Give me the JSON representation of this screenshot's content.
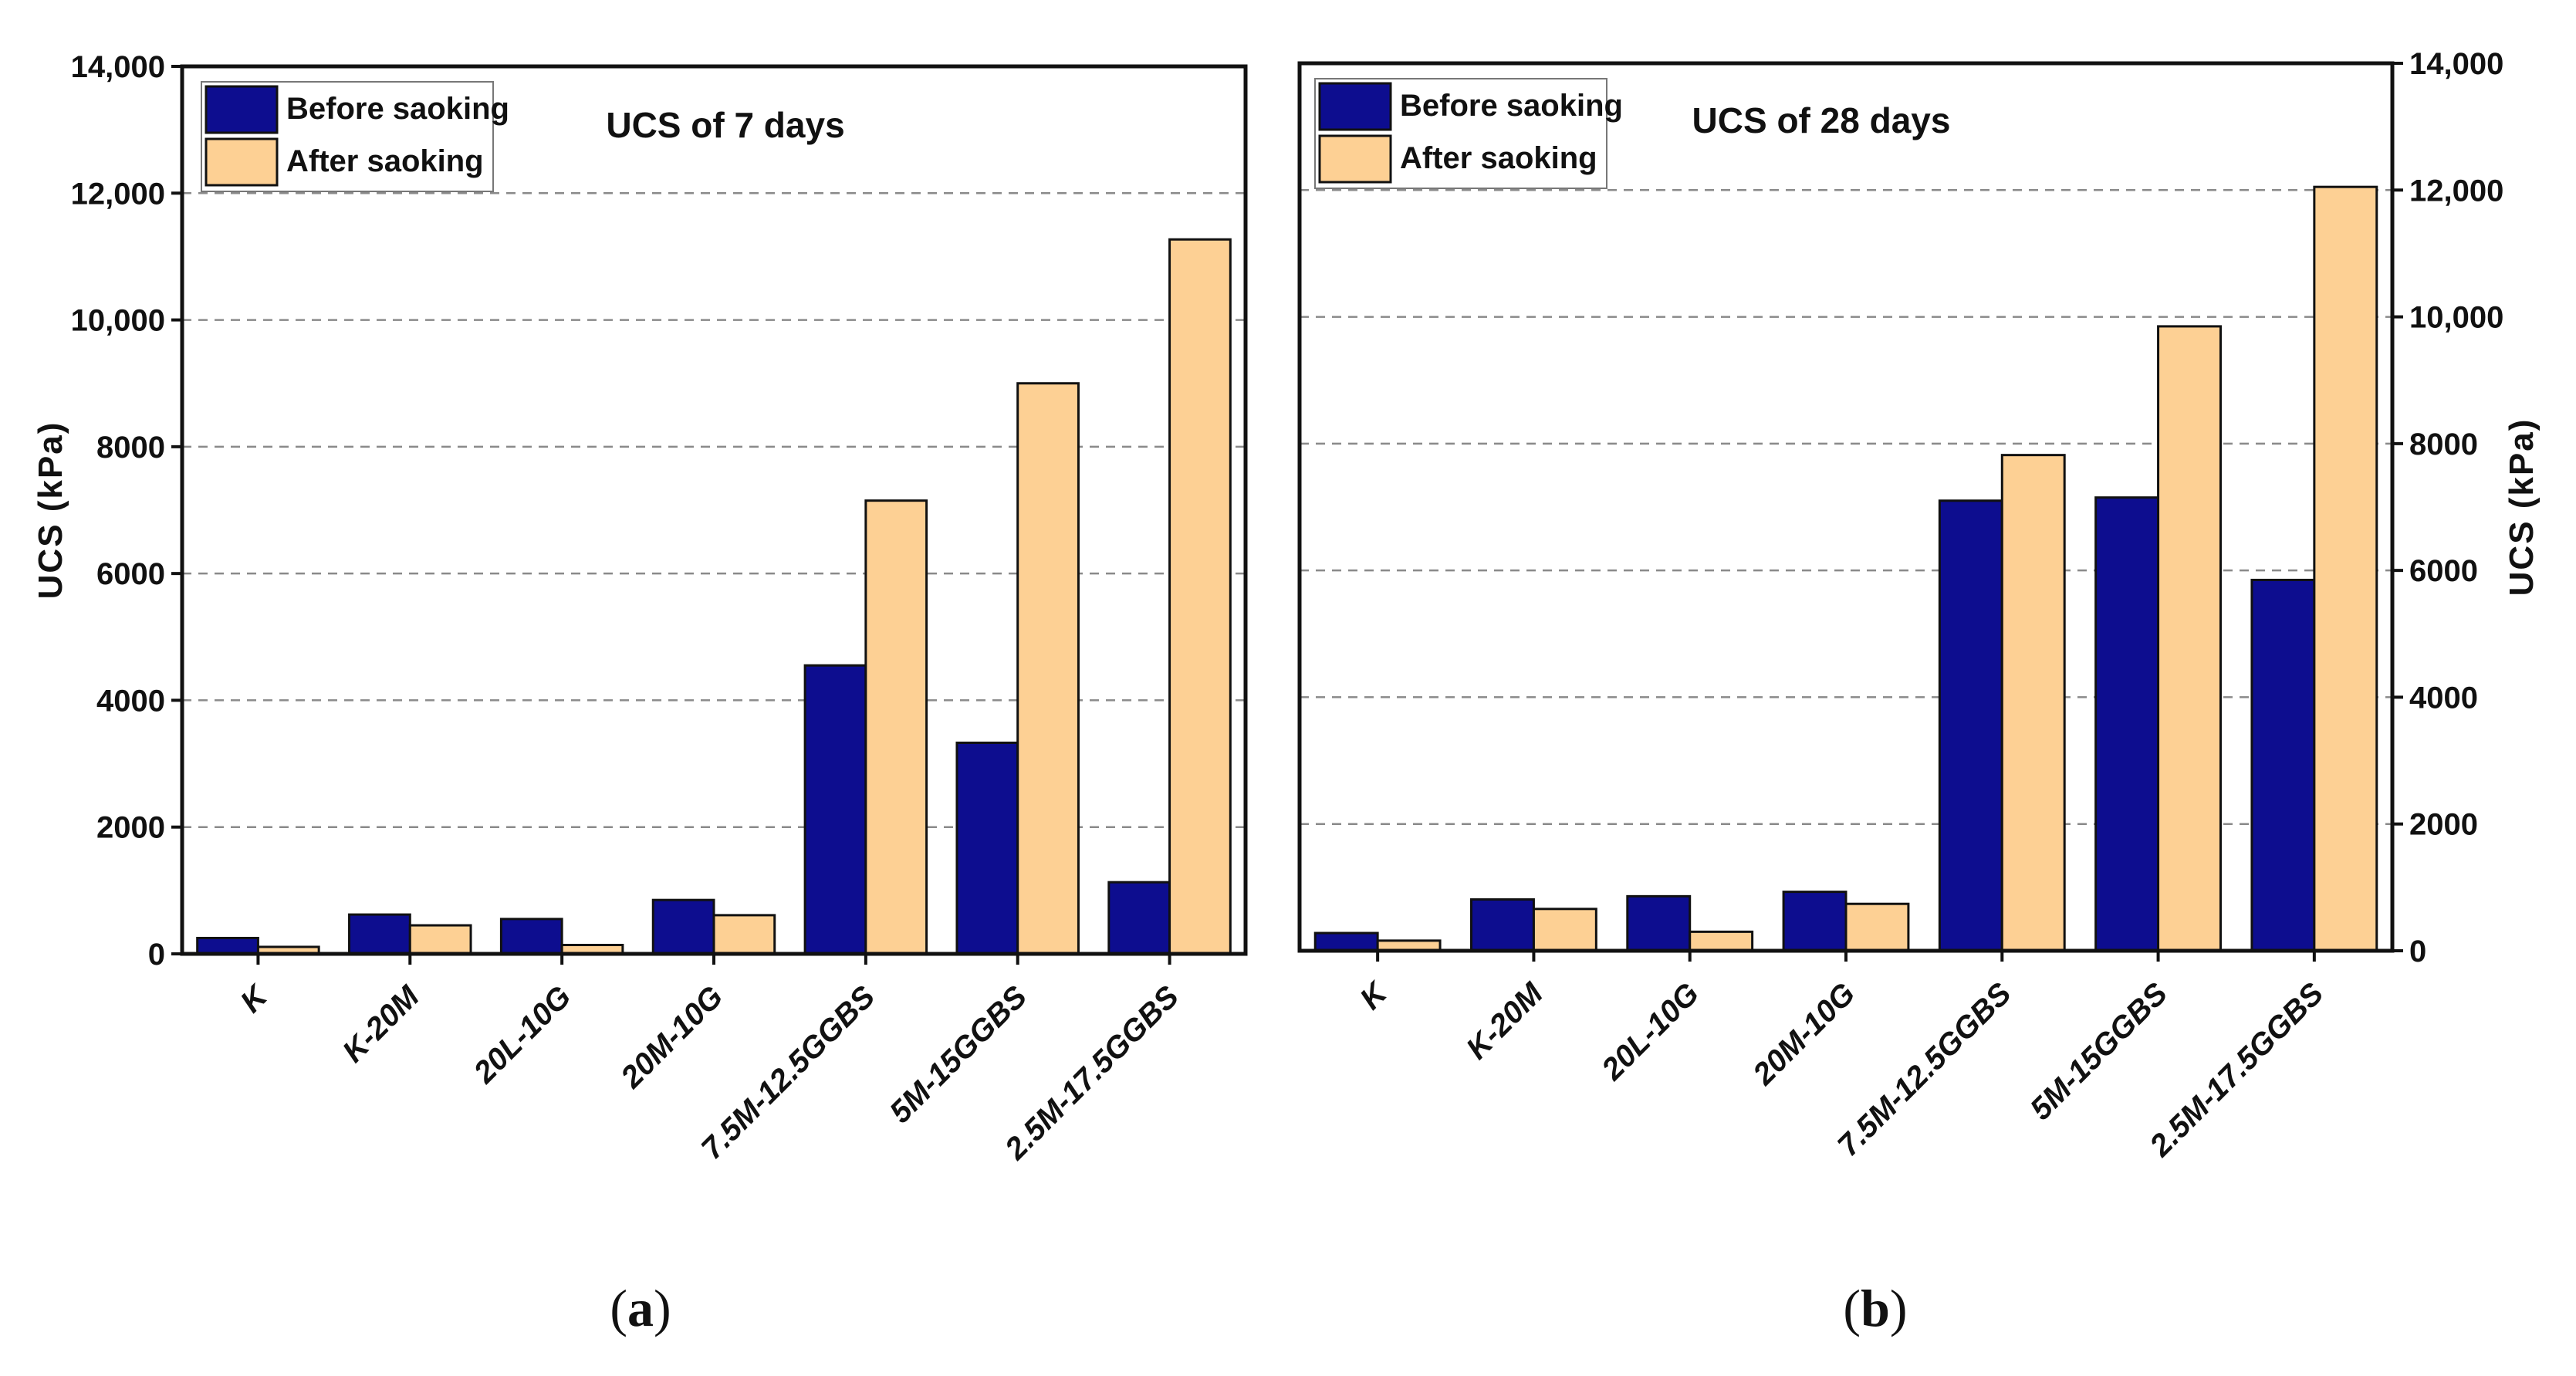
{
  "colors": {
    "before": "#0d0d8f",
    "after": "#fdd094",
    "grid": "#8a8a8a",
    "axis": "#111111"
  },
  "chart_data": [
    {
      "type": "bar",
      "title": "UCS of 7 days",
      "panel_label": "a",
      "ylabel": "UCS (kPa)",
      "y_axis_side": "left",
      "ylim": [
        0,
        14000
      ],
      "yticks": [
        0,
        2000,
        4000,
        6000,
        8000,
        10000,
        12000,
        14000
      ],
      "ytick_labels": [
        "0",
        "2000",
        "4000",
        "6000",
        "8000",
        "10,000",
        "12,000",
        "14,000"
      ],
      "grid": "horizontal dashed",
      "legend_position": "top-left",
      "categories": [
        "K",
        "K-20M",
        "20L-10G",
        "20M-10G",
        "7.5M-12.5GGBS",
        "5M-15GGBS",
        "2.5M-17.5GGBS"
      ],
      "series": [
        {
          "name": "Before saoking",
          "values": [
            250,
            620,
            550,
            850,
            4550,
            3330,
            1130
          ]
        },
        {
          "name": "After saoking",
          "values": [
            110,
            450,
            140,
            610,
            7150,
            9000,
            11270
          ]
        }
      ]
    },
    {
      "type": "bar",
      "title": "UCS of 28 days",
      "panel_label": "b",
      "ylabel": "UCS (kPa)",
      "y_axis_side": "right",
      "ylim": [
        0,
        14000
      ],
      "yticks": [
        0,
        2000,
        4000,
        6000,
        8000,
        10000,
        12000,
        14000
      ],
      "ytick_labels": [
        "0",
        "2000",
        "4000",
        "6000",
        "8000",
        "10,000",
        "12,000",
        "14,000"
      ],
      "grid": "horizontal dashed",
      "legend_position": "top-left",
      "categories": [
        "K",
        "K-20M",
        "20L-10G",
        "20M-10G",
        "7.5M-12.5GGBS",
        "5M-15GGBS",
        "2.5M-17.5GGBS"
      ],
      "series": [
        {
          "name": "Before saoking",
          "values": [
            280,
            810,
            860,
            930,
            7100,
            7150,
            5850
          ]
        },
        {
          "name": "After saoking",
          "values": [
            160,
            660,
            300,
            740,
            7820,
            9850,
            12050
          ]
        }
      ]
    }
  ]
}
